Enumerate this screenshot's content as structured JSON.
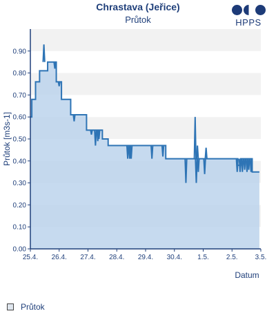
{
  "chart_data": {
    "type": "area",
    "title": "Chrastava (Jeřice)",
    "subtitle": "Průtok",
    "xlabel": "Datum",
    "ylabel": "Průtok [m3s-1]",
    "ylim": [
      0,
      1.0
    ],
    "yticks": [
      "0.00",
      "0.10",
      "0.20",
      "0.30",
      "0.40",
      "0.50",
      "0.60",
      "0.70",
      "0.80",
      "0.90"
    ],
    "xticks": [
      "25.4.",
      "26.4.",
      "27.4.",
      "28.4.",
      "29.4.",
      "30.4.",
      "1.5.",
      "2.5.",
      "3.5."
    ],
    "legend_position": "bottom-left",
    "grid": true,
    "series": [
      {
        "name": "Průtok",
        "color": "#2e74b5",
        "fill": "#bcd4ec",
        "x": [
          0.0,
          0.05,
          0.05,
          0.18,
          0.18,
          0.32,
          0.32,
          0.6,
          0.6,
          0.9,
          0.9,
          1.08,
          1.08,
          1.4,
          1.4,
          1.95,
          1.95,
          2.5,
          2.5,
          2.7,
          2.7,
          4.7,
          4.7,
          5.0,
          5.0,
          5.27,
          5.27,
          5.7,
          5.7,
          6.4,
          6.4,
          6.55,
          6.55,
          7.2,
          7.2,
          7.3,
          7.3,
          7.7,
          7.7,
          7.95,
          7.95
        ],
        "values": [
          0.6,
          0.6,
          0.68,
          0.68,
          0.76,
          0.76,
          0.81,
          0.81,
          0.85,
          0.85,
          0.76,
          0.76,
          0.68,
          0.68,
          0.61,
          0.61,
          0.54,
          0.54,
          0.5,
          0.5,
          0.47,
          0.47,
          0.41,
          0.41,
          0.41,
          0.41,
          0.41,
          0.41,
          0.41,
          0.41,
          0.41,
          0.41,
          0.41,
          0.41,
          0.38,
          0.38,
          0.41,
          0.41,
          0.35,
          0.35,
          0.35
        ],
        "spikes": [
          {
            "x": 0.47,
            "values": [
              0.93,
              0.85
            ]
          },
          {
            "x": 0.85,
            "values": [
              0.82,
              0.85
            ]
          },
          {
            "x": 1.0,
            "values": [
              0.74,
              0.76
            ]
          },
          {
            "x": 1.52,
            "values": [
              0.58,
              0.61
            ]
          },
          {
            "x": 2.12,
            "values": [
              0.52,
              0.54
            ]
          },
          {
            "x": 2.26,
            "values": [
              0.47,
              0.54
            ]
          },
          {
            "x": 2.34,
            "values": [
              0.49,
              0.54
            ]
          },
          {
            "x": 2.38,
            "values": [
              0.5,
              0.54
            ]
          },
          {
            "x": 3.38,
            "values": [
              0.41,
              0.47
            ]
          },
          {
            "x": 3.45,
            "values": [
              0.41,
              0.47
            ]
          },
          {
            "x": 3.5,
            "values": [
              0.41,
              0.47
            ]
          },
          {
            "x": 4.22,
            "values": [
              0.41,
              0.47
            ]
          },
          {
            "x": 4.6,
            "values": [
              0.42,
              0.47
            ]
          },
          {
            "x": 5.4,
            "values": [
              0.3,
              0.41
            ]
          },
          {
            "x": 5.72,
            "values": [
              0.6,
              0.41
            ]
          },
          {
            "x": 5.76,
            "values": [
              0.3,
              0.41
            ]
          },
          {
            "x": 5.8,
            "values": [
              0.47,
              0.41
            ]
          },
          {
            "x": 5.83,
            "values": [
              0.35,
              0.41
            ]
          },
          {
            "x": 6.05,
            "values": [
              0.34,
              0.41
            ]
          },
          {
            "x": 6.1,
            "values": [
              0.46,
              0.41
            ]
          },
          {
            "x": 7.18,
            "values": [
              0.35,
              0.41
            ]
          },
          {
            "x": 7.28,
            "values": [
              0.35,
              0.41
            ]
          },
          {
            "x": 7.36,
            "values": [
              0.35,
              0.41
            ]
          },
          {
            "x": 7.44,
            "values": [
              0.36,
              0.41
            ]
          },
          {
            "x": 7.52,
            "values": [
              0.35,
              0.41
            ]
          },
          {
            "x": 7.58,
            "values": [
              0.36,
              0.41
            ]
          },
          {
            "x": 7.66,
            "values": [
              0.35,
              0.41
            ]
          }
        ]
      }
    ]
  },
  "brand": {
    "text": "HPPS",
    "color": "#1d3b78"
  },
  "legend": {
    "label": "Průtok"
  }
}
